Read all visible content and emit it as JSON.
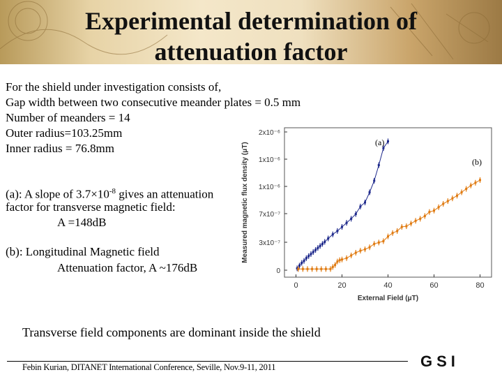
{
  "slide": {
    "title_line1": "Experimental determination of",
    "title_line2": "attenuation factor",
    "intro": [
      "For the shield under investigation consists of,",
      "Gap width between two consecutive meander plates = 0.5 mm",
      "Number of meanders = 14",
      "Outer radius=103.25mm",
      "Inner radius = 76.8mm"
    ],
    "a_prefix": "(a): A slope of  3.7×10",
    "a_exp": "-8",
    "a_suffix": " gives an attenuation",
    "a_line2": "factor for transverse magnetic field:",
    "a_line3": "A =148dB",
    "b_line1": "(b): Longitudinal Magnetic field",
    "b_line2": "Attenuation factor, A ~176dB",
    "conclusion": "Transverse field components are dominant inside the shield",
    "footer": "Febin Kurian, DITANET International Conference, Seville, Nov.9-11, 2011",
    "logo": "GSI"
  },
  "chart_data": {
    "type": "scatter",
    "title": "",
    "xlabel": "External Field (μT)",
    "ylabel": "Measured magnetic flux density (μT)",
    "xlim": [
      -5,
      85
    ],
    "ylim": [
      -1e-07,
      2.1e-06
    ],
    "x_ticks": [
      0,
      20,
      40,
      60,
      80
    ],
    "x_tick_labels": [
      "0",
      "20",
      "40",
      "60",
      "80"
    ],
    "y_ticks": [
      0,
      3e-07,
      7e-07,
      1e-06,
      1.4e-06,
      2e-06
    ],
    "y_tick_labels": [
      "0",
      "3x10⁻⁷",
      "7x10⁻⁷",
      "1x10⁻⁶",
      "1x10⁻⁶",
      "2x10⁻⁶"
    ],
    "colors": {
      "a": "#1f2a8c",
      "b": "#e07a10"
    },
    "series": [
      {
        "name": "(a)",
        "x": [
          0.5,
          1.5,
          2.5,
          3.5,
          4.5,
          5.5,
          6.5,
          7.5,
          8.5,
          9.5,
          10.5,
          11.5,
          12.5,
          14,
          16,
          18,
          20,
          22,
          24,
          26,
          28,
          30,
          32,
          34,
          36,
          38,
          40
        ],
        "y": [
          3e-08,
          7e-08,
          1.1e-07,
          1.4e-07,
          1.8e-07,
          2.1e-07,
          2.4e-07,
          2.7e-07,
          3e-07,
          3.3e-07,
          3.6e-07,
          3.9e-07,
          4.2e-07,
          4.7e-07,
          5.3e-07,
          5.8e-07,
          6.4e-07,
          7e-07,
          7.6e-07,
          8.3e-07,
          9.4e-07,
          1e-06,
          1.15e-06,
          1.32e-06,
          1.55e-06,
          1.8e-06,
          1.9e-06
        ]
      },
      {
        "name": "(b)",
        "x": [
          1,
          3,
          5,
          7,
          9,
          11,
          13,
          15,
          16,
          17,
          18,
          19,
          20,
          22,
          24,
          26,
          28,
          30,
          32,
          34,
          36,
          38,
          40,
          42,
          44,
          46,
          48,
          50,
          52,
          54,
          56,
          58,
          60,
          62,
          64,
          66,
          68,
          70,
          72,
          74,
          76,
          78,
          80
        ],
        "y": [
          2e-08,
          2e-08,
          2e-08,
          2e-08,
          2e-08,
          2e-08,
          2e-08,
          2e-08,
          5e-08,
          8e-08,
          1.3e-07,
          1.5e-07,
          1.6e-07,
          1.8e-07,
          2.2e-07,
          2.6e-07,
          2.9e-07,
          3.1e-07,
          3.4e-07,
          3.9e-07,
          4.1e-07,
          4.3e-07,
          5e-07,
          5.5e-07,
          5.8e-07,
          6.4e-07,
          6.5e-07,
          6.9e-07,
          7.3e-07,
          7.6e-07,
          8e-07,
          8.6e-07,
          8.8e-07,
          9.3e-07,
          9.8e-07,
          1.02e-06,
          1.06e-06,
          1.1e-06,
          1.15e-06,
          1.2e-06,
          1.25e-06,
          1.29e-06,
          1.33e-06
        ]
      }
    ],
    "annotations": [
      "(a)",
      "(b)"
    ]
  }
}
